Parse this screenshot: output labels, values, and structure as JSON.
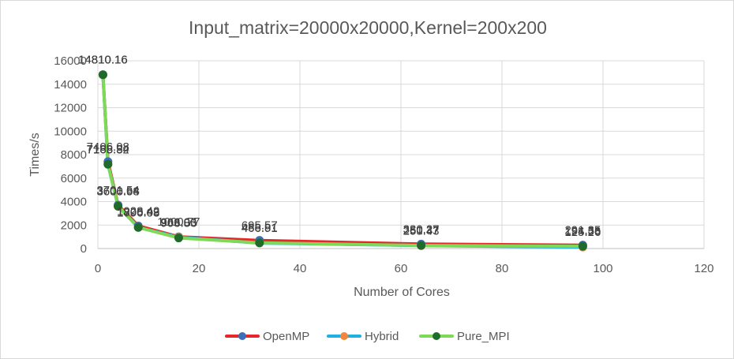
{
  "chart_data": {
    "type": "line",
    "title": "Input_matrix=20000x20000,Kernel=200x200",
    "xlabel": "Number of Cores",
    "ylabel": "Times/s",
    "xlim": [
      0,
      120
    ],
    "ylim": [
      0,
      16000
    ],
    "x_ticks": [
      "0",
      "20",
      "40",
      "60",
      "80",
      "100",
      "120"
    ],
    "y_ticks": [
      "0",
      "2000",
      "4000",
      "6000",
      "8000",
      "10000",
      "12000",
      "14000",
      "16000"
    ],
    "grid": "vertical and horizontal major gridlines",
    "legend_position": "bottom",
    "series": [
      {
        "name": "OpenMP",
        "color": "#e8262a",
        "marker_color": "#3b6fb6",
        "x": [
          1,
          2,
          4,
          8,
          16,
          32,
          64,
          96
        ],
        "y": [
          14810.16,
          7406.08,
          3701.54,
          1928.42,
          1000.77,
          695.57,
          380.27,
          291.35
        ],
        "labels": [
          "14810.16",
          "7406.08",
          "3701.54",
          "1928.42",
          "1000.77",
          "695.57",
          "380.27",
          "291.35"
        ]
      },
      {
        "name": "Hybrid",
        "color": "#1fb0e3",
        "marker_color": "#f0883e",
        "x": [
          1,
          2,
          4,
          8,
          16,
          32,
          64,
          96
        ],
        "y": [
          14810.16,
          7165.82,
          3600.64,
          1796.08,
          966.06,
          466.91,
          250.43,
          125.26
        ],
        "labels": [
          "14810.16",
          "7165.82",
          "3600.64",
          "1796.08",
          "966.06",
          "466.91",
          "250.43",
          "125.26"
        ]
      },
      {
        "name": "Pure_MPI",
        "color": "#7ed957",
        "marker_color": "#1e6b2a",
        "x": [
          1,
          2,
          4,
          8,
          16,
          32,
          64,
          96
        ],
        "y": [
          14810.16,
          7188.54,
          3606.98,
          1800.49,
          903.83,
          488.81,
          261.37,
          194.56
        ],
        "labels": [
          "14810.16",
          "7188.54",
          "3606.98",
          "1800.49",
          "903.83",
          "488.81",
          "261.37",
          "194.56"
        ]
      }
    ]
  }
}
